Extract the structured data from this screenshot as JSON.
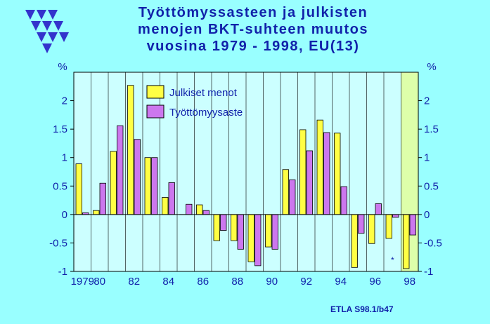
{
  "title_lines": [
    "Työttömyssasteen ja julkisten",
    "menojen BKT-suhteen muutos",
    "vuosina 1979 - 1998, EU(13)"
  ],
  "footer": "ETLA S98.1/b47",
  "colors": {
    "background": "#99ffff",
    "plot_background": "#ccffff",
    "highlight": "#ddffaa",
    "axis_text": "#1122aa",
    "series_julkiset": "#ffff44",
    "series_tyottomyys": "#cc77ee",
    "logo": "#3333cc"
  },
  "chart_data": {
    "type": "bar",
    "title": "Työttömyssasteen ja julkisten menojen BKT-suhteen muutos vuosina 1979 - 1998, EU(13)",
    "ylabel_left": "%",
    "ylabel_right": "%",
    "ylim": [
      -1,
      2.5
    ],
    "y_ticks": [
      -1,
      -0.5,
      0,
      0.5,
      1,
      1.5,
      2
    ],
    "y_tick_labels": [
      "-1",
      "-0.5",
      "0",
      "0.5",
      "1",
      "1.5",
      "2"
    ],
    "categories": [
      1979,
      1980,
      1981,
      1982,
      1983,
      1984,
      1985,
      1986,
      1987,
      1988,
      1989,
      1990,
      1991,
      1992,
      1993,
      1994,
      1995,
      1996,
      1997,
      1998
    ],
    "x_tick_labels": [
      "1979",
      "80",
      "82",
      "84",
      "86",
      "88",
      "90",
      "92",
      "94",
      "96",
      "98"
    ],
    "x_tick_years": [
      1979,
      1980,
      1982,
      1984,
      1986,
      1988,
      1990,
      1992,
      1994,
      1996,
      1998
    ],
    "series": [
      {
        "name": "Julkiset menot",
        "values": [
          0.89,
          0.07,
          1.11,
          2.27,
          1.0,
          0.3,
          0.0,
          0.17,
          -0.46,
          -0.46,
          -0.83,
          -0.57,
          0.79,
          1.49,
          1.66,
          1.43,
          -0.93,
          -0.51,
          -0.42,
          -0.95
        ]
      },
      {
        "name": "Työttömyysaste",
        "values": [
          0.03,
          0.55,
          1.56,
          1.32,
          1.0,
          0.56,
          0.18,
          0.07,
          -0.28,
          -0.61,
          -0.9,
          -0.61,
          0.61,
          1.12,
          1.44,
          0.49,
          -0.33,
          0.19,
          -0.05,
          -0.36
        ]
      }
    ],
    "highlight_category": 1998,
    "annotation": "*",
    "annotation_category": 1997,
    "legend_position": "top-right"
  }
}
